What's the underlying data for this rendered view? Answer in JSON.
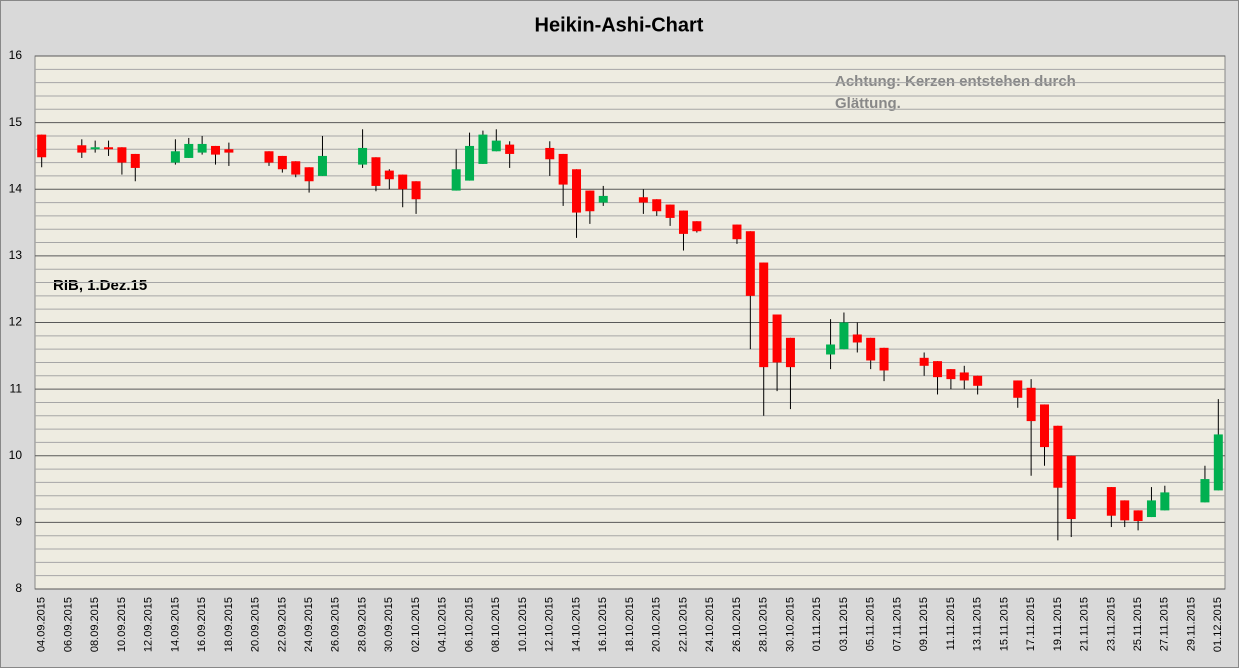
{
  "chart_data": {
    "type": "candlestick",
    "title": "Heikin-Ashi-Chart",
    "annotations": [
      "Achtung: Kerzen entstehen durch",
      "Glättung.",
      "RIB, 1.Dez.15"
    ],
    "categories": [
      "04.09.2015",
      null,
      "06.09.2015",
      null,
      "08.09.2015",
      null,
      "10.09.2015",
      null,
      "12.09.2015",
      null,
      "14.09.2015",
      null,
      "16.09.2015",
      null,
      "18.09.2015",
      null,
      "20.09.2015",
      null,
      "22.09.2015",
      null,
      "24.09.2015",
      null,
      "26.09.2015",
      null,
      "28.09.2015",
      null,
      "30.09.2015",
      null,
      "02.10.2015",
      null,
      "04.10.2015",
      null,
      "06.10.2015",
      null,
      "08.10.2015",
      null,
      "10.10.2015",
      null,
      "12.10.2015",
      null,
      "14.10.2015",
      null,
      "16.10.2015",
      null,
      "18.10.2015",
      null,
      "20.10.2015",
      null,
      "22.10.2015",
      null,
      "24.10.2015",
      null,
      "26.10.2015",
      null,
      "28.10.2015",
      null,
      "30.10.2015",
      null,
      "01.11.2015",
      null,
      "03.11.2015",
      null,
      "05.11.2015",
      null,
      "07.11.2015",
      null,
      "09.11.2015",
      null,
      "11.11.2015",
      null,
      "13.11.2015",
      null,
      "15.11.2015",
      null,
      "17.11.2015",
      null,
      "19.11.2015",
      null,
      "21.11.2015",
      null,
      "23.11.2015",
      null,
      "25.11.2015",
      null,
      "27.11.2015",
      null,
      "29.11.2015",
      null,
      "01.12.2015"
    ],
    "open": [
      14.82,
      null,
      null,
      14.66,
      14.6,
      14.63,
      14.63,
      14.53,
      null,
      null,
      14.4,
      14.47,
      14.55,
      14.65,
      14.6,
      null,
      null,
      14.57,
      14.5,
      14.42,
      14.33,
      14.2,
      null,
      null,
      14.37,
      14.48,
      14.28,
      14.22,
      14.12,
      null,
      null,
      13.98,
      14.13,
      14.38,
      14.57,
      14.67,
      null,
      null,
      14.62,
      14.53,
      14.3,
      13.98,
      13.8,
      null,
      null,
      13.88,
      13.85,
      13.77,
      13.68,
      13.52,
      null,
      null,
      13.47,
      13.37,
      12.9,
      12.12,
      11.77,
      null,
      null,
      11.52,
      11.6,
      11.82,
      11.77,
      11.62,
      null,
      null,
      11.47,
      11.42,
      11.3,
      11.25,
      11.2,
      null,
      null,
      11.13,
      11.02,
      10.77,
      10.45,
      10.0,
      null,
      null,
      9.53,
      9.33,
      9.18,
      9.08,
      9.18,
      null,
      null,
      9.3,
      9.48
    ],
    "high": [
      14.82,
      null,
      null,
      14.75,
      14.73,
      14.73,
      14.63,
      14.53,
      null,
      null,
      14.75,
      14.77,
      14.8,
      14.65,
      14.7,
      null,
      null,
      14.57,
      14.5,
      14.42,
      14.33,
      14.8,
      null,
      null,
      14.9,
      14.48,
      14.3,
      14.22,
      14.12,
      null,
      null,
      14.6,
      14.85,
      14.88,
      14.9,
      14.72,
      null,
      null,
      14.72,
      14.53,
      14.3,
      13.98,
      14.05,
      null,
      null,
      14.0,
      13.85,
      13.77,
      13.68,
      13.52,
      null,
      null,
      13.47,
      13.37,
      12.9,
      12.12,
      11.77,
      null,
      null,
      12.05,
      12.15,
      12.0,
      11.77,
      11.62,
      null,
      null,
      11.55,
      11.42,
      11.3,
      11.35,
      11.2,
      null,
      null,
      11.13,
      11.15,
      10.77,
      10.45,
      10.0,
      null,
      null,
      9.53,
      9.33,
      9.18,
      9.53,
      9.55,
      null,
      null,
      9.85,
      10.85
    ],
    "low": [
      14.33,
      null,
      null,
      14.47,
      14.55,
      14.5,
      14.22,
      14.12,
      null,
      null,
      14.37,
      14.47,
      14.52,
      14.37,
      14.35,
      null,
      null,
      14.35,
      14.25,
      14.18,
      13.95,
      14.2,
      null,
      null,
      14.32,
      13.97,
      14.0,
      13.73,
      13.63,
      null,
      null,
      13.98,
      14.13,
      14.38,
      14.57,
      14.32,
      null,
      null,
      14.2,
      13.75,
      13.27,
      13.48,
      13.75,
      null,
      null,
      13.63,
      13.6,
      13.45,
      13.08,
      13.35,
      null,
      null,
      13.18,
      11.6,
      10.6,
      10.97,
      10.7,
      null,
      null,
      11.3,
      11.6,
      11.55,
      11.3,
      11.12,
      null,
      null,
      11.2,
      10.92,
      11.0,
      11.0,
      10.92,
      null,
      null,
      10.72,
      9.7,
      9.85,
      8.73,
      8.78,
      null,
      null,
      8.93,
      8.93,
      8.88,
      9.08,
      9.18,
      null,
      null,
      9.3,
      9.48
    ],
    "close": [
      14.48,
      null,
      null,
      14.55,
      14.63,
      14.6,
      14.4,
      14.32,
      null,
      null,
      14.57,
      14.68,
      14.68,
      14.52,
      14.55,
      null,
      null,
      14.4,
      14.3,
      14.22,
      14.12,
      14.5,
      null,
      null,
      14.62,
      14.05,
      14.15,
      14.0,
      13.85,
      null,
      null,
      14.3,
      14.65,
      14.82,
      14.73,
      14.53,
      null,
      null,
      14.45,
      14.07,
      13.65,
      13.67,
      13.9,
      null,
      null,
      13.8,
      13.67,
      13.57,
      13.33,
      13.37,
      null,
      null,
      13.25,
      12.4,
      11.33,
      11.4,
      11.33,
      null,
      null,
      11.67,
      12.0,
      11.7,
      11.43,
      11.28,
      null,
      null,
      11.35,
      11.18,
      11.15,
      11.13,
      11.05,
      null,
      null,
      10.87,
      10.52,
      10.13,
      9.52,
      9.05,
      null,
      null,
      9.1,
      9.03,
      9.02,
      9.33,
      9.45,
      null,
      null,
      9.65,
      10.32
    ],
    "up_color": "#00b050",
    "down_color": "#ff0000",
    "ylim": [
      8,
      16
    ],
    "yticks": [
      8,
      9,
      10,
      11,
      12,
      13,
      14,
      15,
      16
    ],
    "grid": true
  }
}
